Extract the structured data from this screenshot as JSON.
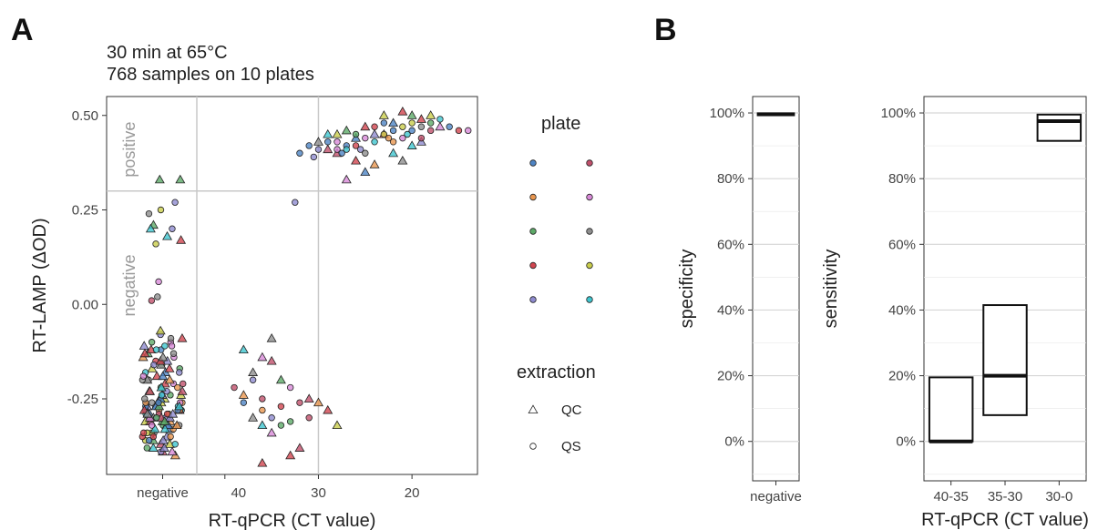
{
  "panels": {
    "a": "A",
    "b": "B"
  },
  "palette": [
    "#4e84c4",
    "#e8964f",
    "#5daa68",
    "#d1454f",
    "#8f8bd0",
    "#c0506b",
    "#d88ad8",
    "#8e8e8e",
    "#c9cd4b",
    "#3fc6cf"
  ],
  "chart_data": [
    {
      "type": "scatter",
      "title": [
        "30 min at 65°C",
        "768 samples on 10 plates"
      ],
      "xlabel": "RT-qPCR (CT value)",
      "ylabel": "RT-LAMP (ΔOD)",
      "x_reversed": true,
      "xlim": [
        43,
        13
      ],
      "ylim": [
        -0.45,
        0.55
      ],
      "x_tick_labels": [
        "negative",
        "40",
        "30",
        "20"
      ],
      "x_ticks": [
        40,
        30,
        20
      ],
      "y_ticks": [
        0.5,
        0.25,
        0.0,
        -0.25
      ],
      "y_tick_labels": [
        "0.50",
        "0.25",
        "0.00",
        "-0.25"
      ],
      "threshold_y": 0.3,
      "vlines": [
        40,
        30
      ],
      "region_labels": {
        "positive": "positive",
        "negative": "negative"
      },
      "negative_group": {
        "x_label": "negative",
        "values": [
          -0.39,
          -0.38,
          -0.37,
          -0.36,
          -0.35,
          -0.34,
          -0.33,
          -0.32,
          -0.31,
          -0.3,
          -0.29,
          -0.28,
          -0.27,
          -0.26,
          -0.25,
          -0.24,
          -0.23,
          -0.22,
          -0.21,
          -0.2,
          -0.19,
          -0.18,
          -0.17,
          -0.16,
          -0.15,
          -0.14,
          -0.13,
          -0.12,
          -0.11,
          -0.1,
          -0.09,
          -0.08,
          -0.07,
          -0.39,
          -0.36,
          -0.33,
          -0.3,
          -0.27,
          -0.24,
          -0.21,
          -0.18,
          -0.15,
          -0.12,
          -0.09,
          -0.38,
          -0.35,
          -0.32,
          -0.29,
          -0.26,
          -0.23,
          -0.2,
          -0.17,
          -0.14,
          -0.11,
          -0.37,
          -0.34,
          -0.31,
          -0.28,
          -0.25,
          -0.22,
          -0.19,
          -0.16,
          -0.13,
          -0.1,
          -0.4,
          -0.36,
          -0.32,
          -0.28,
          -0.24,
          -0.2,
          -0.16,
          -0.12,
          -0.39,
          -0.35,
          -0.31,
          -0.27,
          -0.23,
          -0.19,
          -0.15,
          -0.11,
          -0.38,
          -0.34,
          -0.3,
          -0.26,
          -0.22,
          -0.18,
          -0.14,
          -0.37,
          -0.33,
          -0.29,
          -0.25,
          -0.21,
          -0.17,
          -0.13,
          -0.36,
          -0.32,
          -0.28,
          -0.24,
          -0.2,
          -0.35,
          -0.31,
          -0.27,
          -0.23,
          -0.34,
          -0.3,
          -0.26,
          -0.33,
          -0.29,
          -0.32,
          -0.3,
          -0.28,
          -0.26,
          -0.31,
          -0.29,
          -0.27,
          -0.25,
          -0.3,
          -0.28,
          -0.27,
          -0.26,
          -0.29,
          -0.28,
          -0.31,
          -0.3,
          -0.29,
          -0.32,
          -0.27
        ],
        "outliers": [
          {
            "y": 0.33,
            "extraction": "QC",
            "plate": 2
          },
          {
            "y": 0.33,
            "extraction": "QC",
            "plate": 2
          },
          {
            "y": 0.27,
            "extraction": "QS",
            "plate": 4
          },
          {
            "y": 0.25,
            "extraction": "QS",
            "plate": 8
          },
          {
            "y": 0.24,
            "extraction": "QS",
            "plate": 7
          },
          {
            "y": 0.21,
            "extraction": "QC",
            "plate": 2
          },
          {
            "y": 0.2,
            "extraction": "QC",
            "plate": 9
          },
          {
            "y": 0.2,
            "extraction": "QS",
            "plate": 4
          },
          {
            "y": 0.18,
            "extraction": "QC",
            "plate": 9
          },
          {
            "y": 0.17,
            "extraction": "QC",
            "plate": 3
          },
          {
            "y": 0.16,
            "extraction": "QS",
            "plate": 8
          },
          {
            "y": 0.06,
            "extraction": "QS",
            "plate": 6
          },
          {
            "y": 0.02,
            "extraction": "QS",
            "plate": 7
          },
          {
            "y": 0.01,
            "extraction": "QS",
            "plate": 5
          }
        ]
      },
      "series": [
        {
          "name": "QC",
          "points": [
            [
              38,
              -0.12
            ],
            [
              36,
              -0.14
            ],
            [
              35,
              -0.09
            ],
            [
              37,
              -0.18
            ],
            [
              34,
              -0.2
            ],
            [
              35,
              -0.15
            ],
            [
              38,
              -0.24
            ],
            [
              37,
              -0.3
            ],
            [
              36,
              -0.32
            ],
            [
              35,
              -0.34
            ],
            [
              36,
              -0.42
            ],
            [
              33,
              -0.4
            ],
            [
              32,
              -0.38
            ],
            [
              31,
              -0.25
            ],
            [
              30,
              -0.26
            ],
            [
              29,
              -0.28
            ],
            [
              28,
              -0.32
            ],
            [
              30,
              0.43
            ],
            [
              29,
              0.41
            ],
            [
              28,
              0.4
            ],
            [
              27,
              0.33
            ],
            [
              26,
              0.38
            ],
            [
              25,
              0.35
            ],
            [
              24,
              0.37
            ],
            [
              23,
              0.45
            ],
            [
              22,
              0.4
            ],
            [
              21,
              0.38
            ],
            [
              20,
              0.42
            ],
            [
              19,
              0.43
            ],
            [
              18,
              0.5
            ],
            [
              24,
              0.45
            ],
            [
              26,
              0.44
            ],
            [
              28,
              0.45
            ],
            [
              25,
              0.47
            ],
            [
              27,
              0.46
            ],
            [
              20,
              0.5
            ],
            [
              22,
              0.48
            ],
            [
              21,
              0.51
            ],
            [
              19,
              0.49
            ],
            [
              29,
              0.45
            ],
            [
              23,
              0.5
            ],
            [
              17,
              0.47
            ]
          ]
        },
        {
          "name": "QS",
          "points": [
            [
              39,
              -0.22
            ],
            [
              38,
              -0.26
            ],
            [
              37,
              -0.2
            ],
            [
              36,
              -0.28
            ],
            [
              35,
              -0.3
            ],
            [
              34,
              -0.27
            ],
            [
              33,
              -0.31
            ],
            [
              32,
              -0.26
            ],
            [
              31,
              -0.3
            ],
            [
              34,
              -0.32
            ],
            [
              36,
              -0.25
            ],
            [
              33,
              -0.22
            ],
            [
              32.5,
              0.27
            ],
            [
              32,
              0.4
            ],
            [
              31,
              0.42
            ],
            [
              30.5,
              0.39
            ],
            [
              30,
              0.41
            ],
            [
              29,
              0.43
            ],
            [
              28,
              0.41
            ],
            [
              27.5,
              0.4
            ],
            [
              27,
              0.42
            ],
            [
              26,
              0.42
            ],
            [
              25.5,
              0.41
            ],
            [
              25,
              0.44
            ],
            [
              24,
              0.43
            ],
            [
              23,
              0.45
            ],
            [
              22.5,
              0.44
            ],
            [
              22,
              0.46
            ],
            [
              21,
              0.47
            ],
            [
              20.5,
              0.45
            ],
            [
              20,
              0.48
            ],
            [
              19,
              0.47
            ],
            [
              18,
              0.46
            ],
            [
              17,
              0.49
            ],
            [
              16,
              0.47
            ],
            [
              15,
              0.46
            ],
            [
              14,
              0.46
            ],
            [
              23,
              0.48
            ],
            [
              21,
              0.44
            ],
            [
              24,
              0.47
            ],
            [
              26,
              0.45
            ],
            [
              27,
              0.41
            ],
            [
              19,
              0.44
            ],
            [
              22,
              0.43
            ],
            [
              28,
              0.43
            ],
            [
              25,
              0.4
            ],
            [
              20,
              0.46
            ],
            [
              18,
              0.48
            ]
          ]
        }
      ],
      "legend": {
        "plate_title": "plate",
        "extraction_title": "extraction",
        "extraction_items": [
          "QC",
          "QS"
        ]
      }
    },
    {
      "type": "crossbar",
      "ylabel": "specificity",
      "categories": [
        "negative"
      ],
      "bars": [
        {
          "category": "negative",
          "low": 99.3,
          "mid": 99.6,
          "high": 99.9
        }
      ],
      "ylim": [
        -12,
        105
      ],
      "y_ticks": [
        0,
        20,
        40,
        60,
        80,
        100
      ],
      "y_tick_labels": [
        "0%",
        "20%",
        "40%",
        "60%",
        "80%",
        "100%"
      ]
    },
    {
      "type": "crossbar",
      "ylabel": "sensitivity",
      "xlabel": "RT-qPCR (CT value)",
      "categories": [
        "40-35",
        "35-30",
        "30-0"
      ],
      "bars": [
        {
          "category": "40-35",
          "low": 0,
          "mid": 0,
          "high": 19.5
        },
        {
          "category": "35-30",
          "low": 8,
          "mid": 20,
          "high": 41.5
        },
        {
          "category": "30-0",
          "low": 91.5,
          "mid": 97.5,
          "high": 99.5
        }
      ],
      "ylim": [
        -12,
        105
      ],
      "y_ticks": [
        0,
        20,
        40,
        60,
        80,
        100
      ],
      "y_tick_labels": [
        "0%",
        "20%",
        "40%",
        "60%",
        "80%",
        "100%"
      ]
    }
  ]
}
